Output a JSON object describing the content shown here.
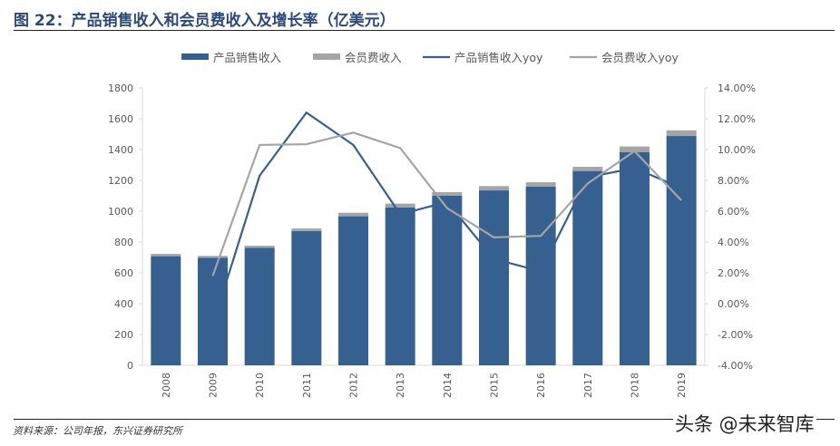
{
  "title": "图 22：产品销售收入和会员费收入及增长率（亿美元）",
  "source": "资料来源：公司年报，东兴证券研究所",
  "watermark": "头条 @未来智库",
  "chart_data": {
    "type": "bar+line",
    "categories": [
      "2008",
      "2009",
      "2010",
      "2011",
      "2012",
      "2013",
      "2014",
      "2015",
      "2016",
      "2017",
      "2018",
      "2019"
    ],
    "series": [
      {
        "name": "产品销售收入",
        "type": "bar",
        "stack": "revenue",
        "axis": "left",
        "color": "#36608f",
        "values": [
          708,
          698,
          763,
          871,
          967,
          1025,
          1100,
          1135,
          1159,
          1261,
          1384,
          1488
        ]
      },
      {
        "name": "会员费收入",
        "type": "bar",
        "stack": "revenue",
        "axis": "left",
        "color": "#a5a5a5",
        "values": [
          15,
          12,
          13,
          17,
          23,
          24,
          24,
          28,
          29,
          27,
          36,
          37
        ]
      },
      {
        "name": "产品销售收入yoy",
        "type": "line",
        "axis": "right",
        "color": "#36608f",
        "values": [
          null,
          -1.4,
          8.3,
          12.4,
          10.3,
          5.8,
          6.6,
          2.9,
          2.1,
          8.2,
          8.8,
          7.5
        ]
      },
      {
        "name": "会员费收入yoy",
        "type": "line",
        "axis": "right",
        "color": "#a5a5a5",
        "values": [
          null,
          1.8,
          10.3,
          10.35,
          11.1,
          10.1,
          6.2,
          4.3,
          4.4,
          7.8,
          9.9,
          6.7
        ]
      }
    ],
    "left_axis": {
      "ylim": [
        0,
        1800
      ],
      "ticks": [
        "0",
        "200",
        "400",
        "600",
        "800",
        "1000",
        "1200",
        "1400",
        "1600",
        "1800"
      ]
    },
    "right_axis": {
      "ylim": [
        -4,
        14
      ],
      "ticks": [
        "-4.00%",
        "-2.00%",
        "0.00%",
        "2.00%",
        "4.00%",
        "6.00%",
        "8.00%",
        "10.00%",
        "12.00%",
        "14.00%"
      ]
    },
    "legend": "top",
    "grid": false
  }
}
